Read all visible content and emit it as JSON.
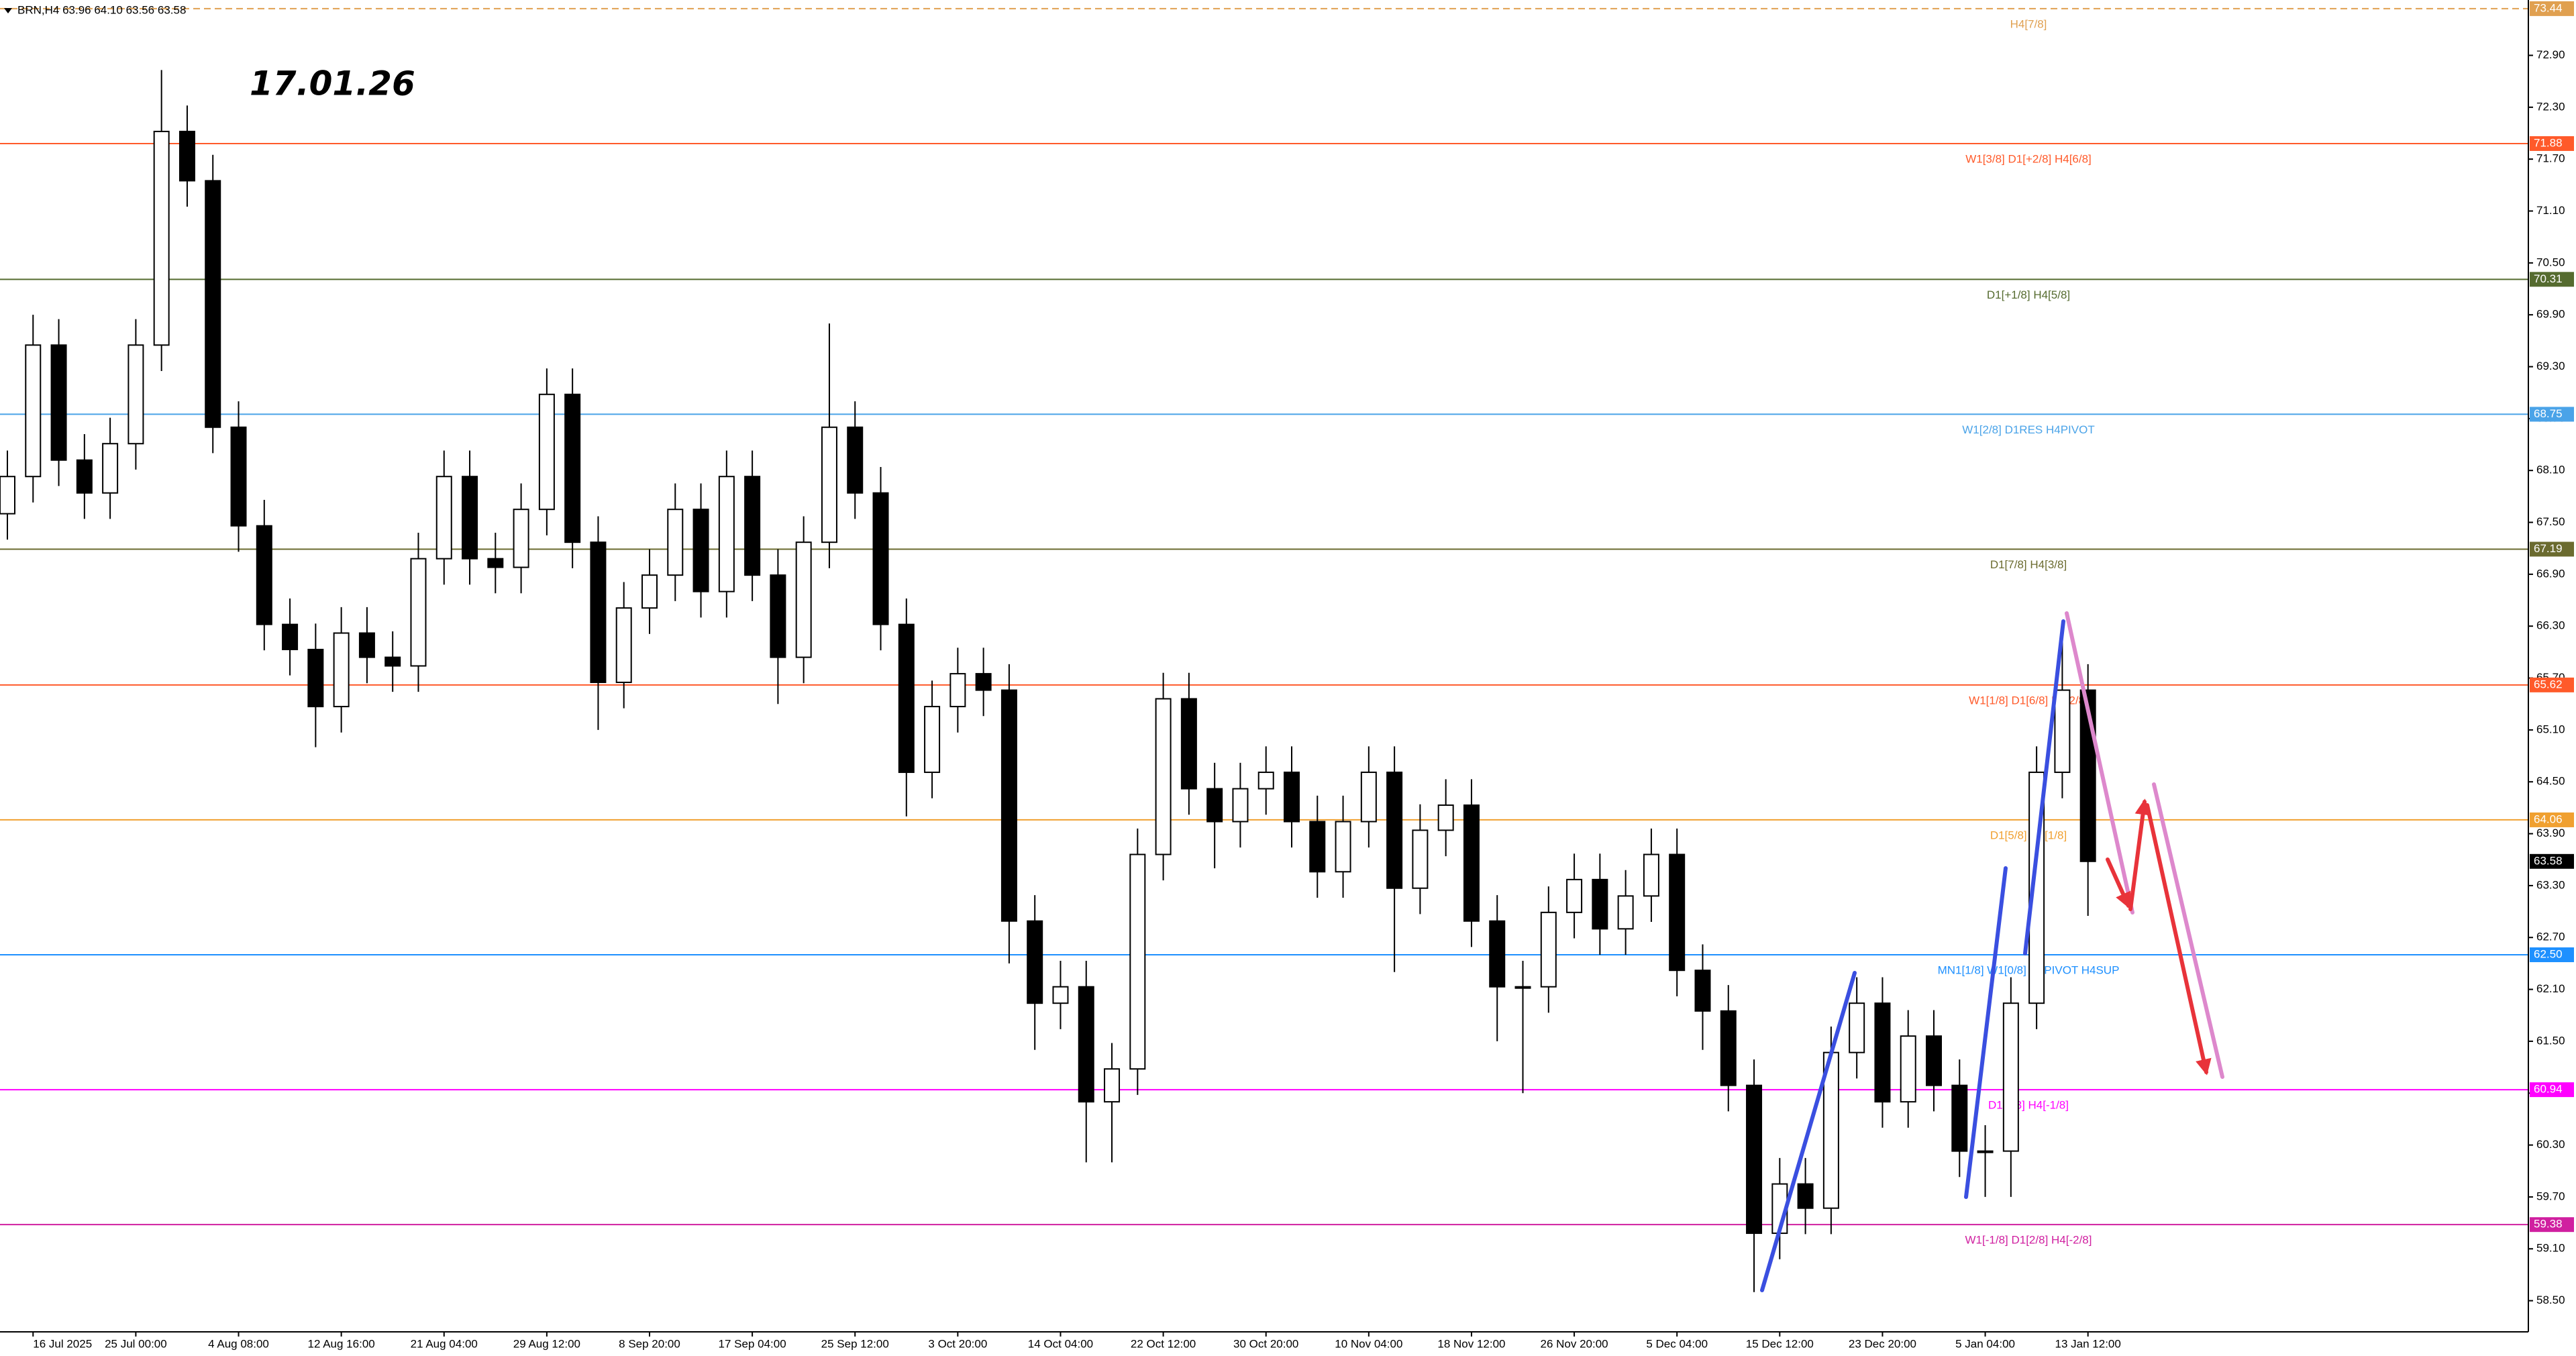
{
  "chart_data": {
    "type": "candlestick",
    "title": "BRN,H4  63.96 64.10 63.56 63.58",
    "annotation": "17.01.26",
    "categories": [
      "16 Jul 2025",
      "25 Jul 00:00",
      "4 Aug 08:00",
      "12 Aug 16:00",
      "21 Aug 04:00",
      "29 Aug 12:00",
      "8 Sep 20:00",
      "17 Sep 04:00",
      "25 Sep 12:00",
      "3 Oct 20:00",
      "14 Oct 04:00",
      "22 Oct 12:00",
      "30 Oct 20:00",
      "10 Nov 04:00",
      "18 Nov 12:00",
      "26 Nov 20:00",
      "5 Dec 04:00",
      "15 Dec 12:00",
      "23 Dec 20:00",
      "5 Jan 04:00",
      "13 Jan 12:00"
    ],
    "open": [
      67.6,
      68.03,
      69.55,
      68.22,
      67.84,
      68.41,
      69.55,
      72.02,
      71.45,
      68.6,
      67.46,
      66.32,
      66.03,
      65.37,
      66.22,
      65.94,
      65.84,
      67.08,
      68.03,
      67.08,
      66.98,
      67.65,
      68.98,
      67.27,
      65.65,
      66.51,
      66.89,
      67.65,
      66.7,
      68.03,
      66.89,
      65.94,
      67.27,
      68.6,
      67.84,
      66.32,
      64.61,
      65.37,
      65.75,
      65.56,
      62.89,
      61.94,
      62.13,
      60.8,
      61.18,
      63.66,
      65.46,
      64.42,
      64.04,
      64.42,
      64.61,
      64.04,
      63.46,
      64.04,
      64.61,
      63.27,
      63.94,
      64.23,
      62.89,
      62.13,
      62.13,
      62.99,
      63.37,
      62.8,
      63.18,
      63.66,
      62.32,
      61.85,
      60.99,
      59.28,
      59.85,
      59.57,
      61.37,
      61.94,
      60.8,
      61.56,
      60.99,
      60.23,
      60.23,
      61.94,
      64.61,
      65.56
    ],
    "high": [
      68.33,
      69.9,
      69.85,
      68.52,
      68.71,
      69.85,
      72.73,
      72.32,
      71.75,
      68.9,
      67.76,
      66.62,
      66.33,
      66.52,
      66.52,
      66.24,
      67.38,
      68.33,
      68.33,
      67.38,
      67.95,
      69.28,
      69.28,
      67.57,
      66.81,
      67.19,
      67.95,
      67.95,
      68.33,
      68.33,
      67.19,
      67.57,
      69.8,
      68.9,
      68.14,
      66.62,
      65.67,
      66.05,
      66.05,
      65.86,
      63.19,
      62.43,
      62.43,
      61.48,
      63.96,
      65.76,
      65.76,
      64.72,
      64.72,
      64.91,
      64.91,
      64.34,
      64.34,
      64.91,
      64.91,
      64.24,
      64.53,
      64.53,
      63.19,
      62.43,
      63.29,
      63.67,
      63.67,
      63.48,
      63.96,
      63.96,
      62.62,
      62.15,
      61.29,
      60.15,
      60.15,
      61.67,
      62.24,
      62.24,
      61.86,
      61.86,
      61.29,
      60.53,
      62.24,
      64.91,
      66.35,
      65.86
    ],
    "low": [
      67.3,
      67.73,
      67.92,
      67.54,
      67.54,
      68.11,
      69.25,
      71.15,
      68.3,
      67.16,
      66.02,
      65.73,
      64.9,
      65.07,
      65.64,
      65.54,
      65.54,
      66.78,
      66.78,
      66.68,
      66.68,
      67.35,
      66.97,
      65.1,
      65.35,
      66.21,
      66.59,
      66.4,
      66.4,
      66.59,
      65.4,
      65.64,
      66.97,
      67.54,
      66.02,
      64.1,
      64.31,
      65.07,
      65.26,
      62.4,
      61.4,
      61.64,
      60.1,
      60.1,
      60.88,
      63.36,
      64.12,
      63.5,
      63.74,
      64.12,
      63.74,
      63.16,
      63.16,
      63.74,
      62.3,
      62.97,
      63.64,
      62.59,
      61.5,
      60.9,
      61.83,
      62.69,
      62.5,
      62.5,
      62.88,
      62.02,
      61.4,
      60.69,
      58.6,
      58.98,
      59.27,
      59.27,
      61.07,
      60.5,
      60.5,
      60.69,
      59.93,
      59.7,
      59.7,
      61.64,
      64.31,
      62.95
    ],
    "close": [
      68.03,
      69.55,
      68.22,
      67.84,
      68.41,
      69.55,
      72.02,
      71.45,
      68.6,
      67.46,
      66.32,
      66.03,
      65.37,
      66.22,
      65.94,
      65.84,
      67.08,
      68.03,
      67.08,
      66.98,
      67.65,
      68.98,
      67.27,
      65.65,
      66.51,
      66.89,
      67.65,
      66.7,
      68.03,
      66.89,
      65.94,
      67.27,
      68.6,
      67.84,
      66.32,
      64.61,
      65.37,
      65.75,
      65.56,
      62.89,
      61.94,
      62.13,
      60.8,
      61.18,
      63.66,
      65.46,
      64.42,
      64.04,
      64.42,
      64.61,
      64.04,
      63.46,
      64.04,
      64.61,
      63.27,
      63.94,
      64.23,
      62.89,
      62.13,
      62.13,
      62.99,
      63.37,
      62.8,
      63.18,
      63.66,
      62.32,
      61.85,
      60.99,
      59.28,
      59.85,
      59.57,
      61.37,
      61.94,
      60.8,
      61.56,
      60.99,
      60.23,
      60.23,
      61.94,
      64.61,
      65.56,
      63.58
    ],
    "up_color": "#ffffff",
    "down_color": "#000000",
    "last_price": 63.58,
    "ylim": [
      58.14,
      73.54
    ],
    "yticks": [
      {
        "value": 58.5,
        "label": "58.50"
      },
      {
        "value": 59.1,
        "label": "59.10"
      },
      {
        "value": 59.7,
        "label": "59.70"
      },
      {
        "value": 60.3,
        "label": "60.30"
      },
      {
        "value": 60.9,
        "label": "60.90"
      },
      {
        "value": 61.5,
        "label": "61.50"
      },
      {
        "value": 62.1,
        "label": "62.10"
      },
      {
        "value": 62.7,
        "label": "62.70"
      },
      {
        "value": 63.3,
        "label": "63.30"
      },
      {
        "value": 63.9,
        "label": "63.90"
      },
      {
        "value": 64.5,
        "label": "64.50"
      },
      {
        "value": 65.1,
        "label": "65.10"
      },
      {
        "value": 65.7,
        "label": "65.70"
      },
      {
        "value": 66.3,
        "label": "66.30"
      },
      {
        "value": 66.9,
        "label": "66.90"
      },
      {
        "value": 67.5,
        "label": "67.50"
      },
      {
        "value": 68.1,
        "label": "68.10"
      },
      {
        "value": 68.7,
        "label": "68.70"
      },
      {
        "value": 69.3,
        "label": "69.30"
      },
      {
        "value": 69.9,
        "label": "69.90"
      },
      {
        "value": 70.5,
        "label": "70.50"
      },
      {
        "value": 71.1,
        "label": "71.10"
      },
      {
        "value": 71.7,
        "label": "71.70"
      },
      {
        "value": 72.3,
        "label": "72.30"
      },
      {
        "value": 72.9,
        "label": "72.90"
      }
    ],
    "grid": false,
    "levels": {
      "values": [
        73.44,
        71.88,
        70.31,
        68.75,
        67.19,
        65.62,
        64.06,
        62.5,
        60.94,
        59.38
      ],
      "value_labels": [
        "73.44",
        "71.88",
        "70.31",
        "68.75",
        "67.19",
        "65.62",
        "64.06",
        "62.50",
        "60.94",
        "59.38"
      ],
      "names": [
        "H4[7/8]",
        "W1[3/8] D1[+2/8] H4[6/8]",
        "D1[+1/8] H4[5/8]",
        "W1[2/8] D1RES H4PIVOT",
        "D1[7/8] H4[3/8]",
        "W1[1/8] D1[6/8] H4[2/8]",
        "D1[5/8] H4[1/8]",
        "MN1[1/8] W1[0/8] D1PIVOT H4SUP",
        "D1[3/8] H4[-1/8]",
        "W1[-1/8] D1[2/8] H4[-2/8]"
      ],
      "colors": [
        "#e0a050",
        "#ff5a2a",
        "#556b2f",
        "#4aa3e8",
        "#6b6b2f",
        "#ff5a2a",
        "#f0a030",
        "#1e90ff",
        "#ff00ff",
        "#d020a0"
      ],
      "line_styles": [
        "dashed",
        "solid",
        "solid",
        "solid",
        "solid",
        "solid",
        "solid",
        "solid",
        "solid",
        "solid"
      ]
    }
  }
}
